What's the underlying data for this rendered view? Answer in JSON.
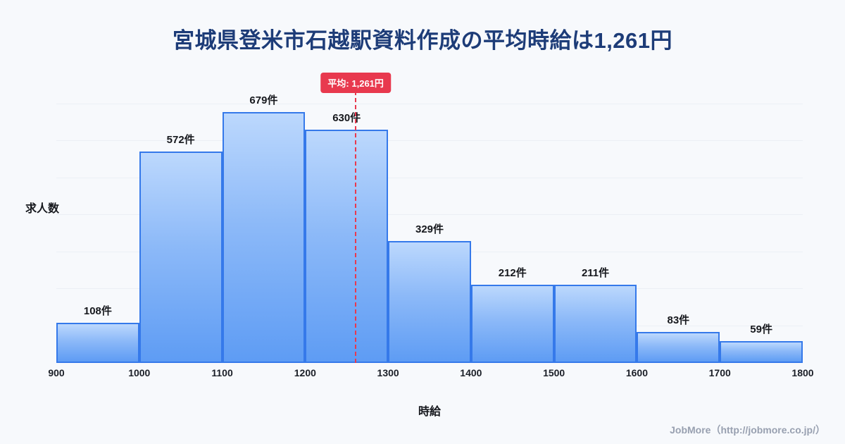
{
  "title": "宮城県登米市石越駅資料作成の平均時給は1,261円",
  "chart_data": {
    "type": "bar",
    "subtype": "histogram",
    "title": "宮城県登米市石越駅資料作成の平均時給は1,261円",
    "xlabel": "時給",
    "ylabel": "求人数",
    "x_range": [
      900,
      1800
    ],
    "bin_width": 100,
    "bin_edges": [
      900,
      1000,
      1100,
      1200,
      1300,
      1400,
      1500,
      1600,
      1700,
      1800
    ],
    "x_ticks": [
      "900",
      "1000",
      "1100",
      "1200",
      "1300",
      "1400",
      "1500",
      "1600",
      "1700",
      "1800"
    ],
    "values": [
      108,
      572,
      679,
      630,
      329,
      212,
      211,
      83,
      59
    ],
    "bar_labels": [
      "108件",
      "572件",
      "679件",
      "630件",
      "329件",
      "212件",
      "211件",
      "83件",
      "59件"
    ],
    "average": {
      "value": 1261,
      "label": "平均: 1,261円"
    },
    "ylim": [
      0,
      800
    ],
    "grid": false,
    "legend": "none"
  },
  "footer": {
    "text": "JobMore（http://jobmore.co.jp/）"
  },
  "colors": {
    "background": "#f7f9fc",
    "title_text": "#1d3c78",
    "bar_fill_top": "#bcd8fd",
    "bar_fill_bottom": "#5e9cf4",
    "bar_border": "#3579ea",
    "average_accent": "#e8394e",
    "axis_text": "#16181d",
    "footer_text": "#98a0b0"
  }
}
